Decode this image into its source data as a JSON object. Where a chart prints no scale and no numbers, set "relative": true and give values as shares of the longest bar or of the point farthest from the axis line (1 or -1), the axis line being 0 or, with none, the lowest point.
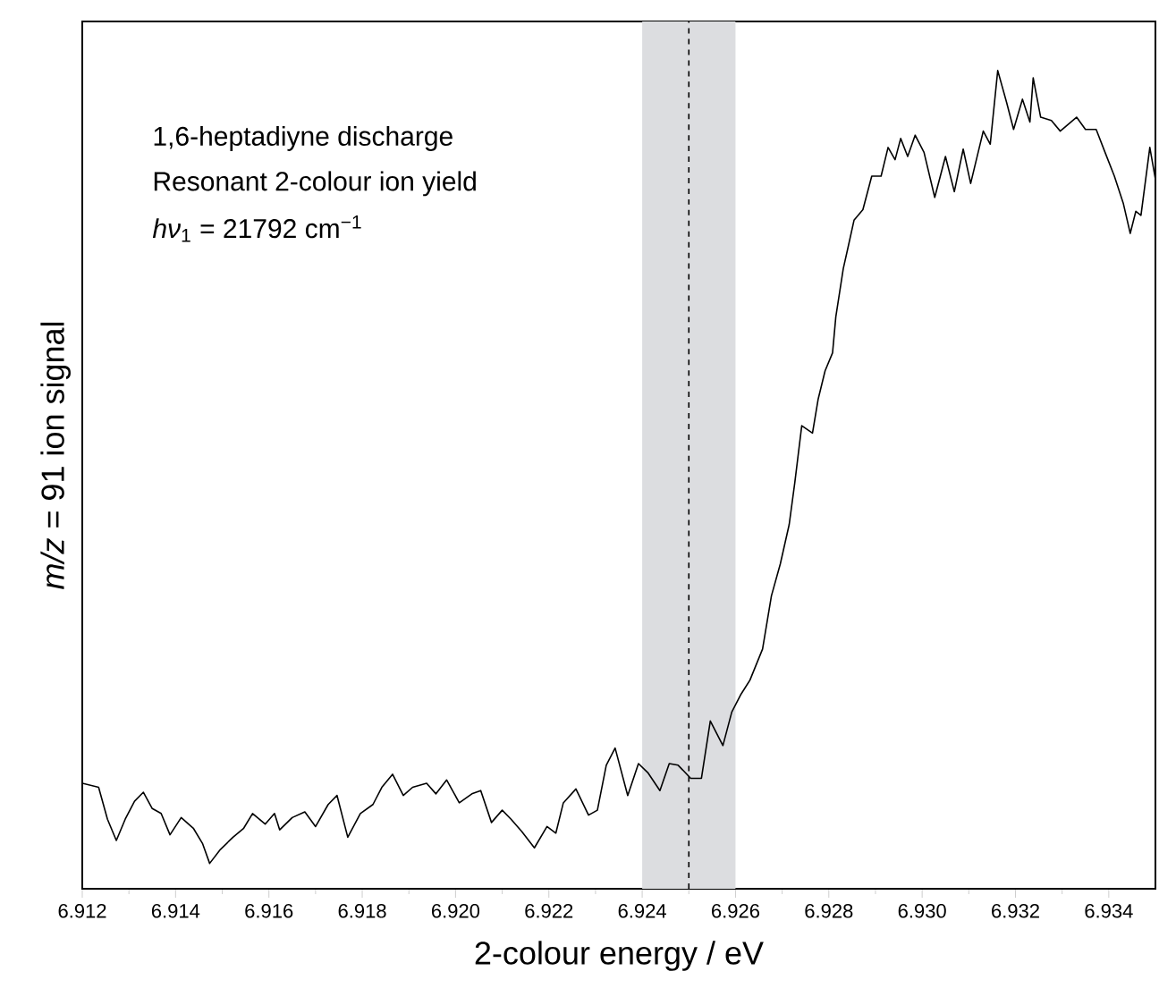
{
  "chart_data": {
    "type": "line",
    "relative": true,
    "xlabel": "2-colour energy / eV",
    "ylabel": "*m/z* = 91 ion signal",
    "annotations": [
      "1,6-heptadiyne discharge",
      "Resonant 2-colour ion yield",
      "*hν*$_{1}$ = 21792 cm$^{−1}$"
    ],
    "xlim": [
      6.912,
      6.935
    ],
    "xticks": [
      6.912,
      6.914,
      6.916,
      6.918,
      {
        "value": 6.92,
        "label": "6.920"
      },
      6.922,
      6.924,
      6.926,
      6.928,
      {
        "value": 6.93,
        "label": "6.930"
      },
      6.932,
      6.934
    ],
    "bands": [
      {
        "axis": "x",
        "from": 6.924,
        "to": 6.926,
        "color": "#dcdde0"
      }
    ],
    "ref_lines": [
      {
        "axis": "x",
        "value": 6.925,
        "line_style": "dashed",
        "color": "#000000"
      }
    ],
    "color": "#000000",
    "x": [
      6.912,
      6.91235,
      6.91254,
      6.91273,
      6.91292,
      6.91312,
      6.91331,
      6.9135,
      6.91369,
      6.91388,
      6.91412,
      6.91438,
      6.91458,
      6.91473,
      6.91496,
      6.91523,
      6.91546,
      6.91565,
      6.91592,
      6.91612,
      6.91623,
      6.9165,
      6.91677,
      6.917,
      6.91727,
      6.91746,
      6.91769,
      6.91796,
      6.91823,
      6.91842,
      6.91865,
      6.91888,
      6.91908,
      6.91938,
      6.91958,
      6.91981,
      6.92008,
      6.92035,
      6.92054,
      6.92077,
      6.921,
      6.92119,
      6.92142,
      6.92169,
      6.92196,
      6.92215,
      6.92231,
      6.92258,
      6.92285,
      6.92304,
      6.92323,
      6.92342,
      6.92369,
      6.92392,
      6.92412,
      6.92438,
      6.92458,
      6.92477,
      6.92504,
      6.92527,
      6.92546,
      6.92573,
      6.92592,
      6.92612,
      6.92631,
      6.92658,
      6.92677,
      6.92696,
      6.92715,
      6.92727,
      6.92742,
      6.92765,
      6.92777,
      6.92792,
      6.92808,
      6.92815,
      6.92831,
      6.92842,
      6.92854,
      6.92873,
      6.92892,
      6.92912,
      6.92927,
      6.92942,
      6.92954,
      6.92969,
      6.92985,
      6.93004,
      6.93027,
      6.9305,
      6.93069,
      6.93088,
      6.93104,
      6.93131,
      6.93146,
      6.93162,
      6.93181,
      6.93196,
      6.93215,
      6.93231,
      6.93238,
      6.93254,
      6.93277,
      6.93296,
      6.93331,
      6.9335,
      6.93373,
      6.93392,
      6.93412,
      6.93431,
      6.93446,
      6.93458,
      6.93469,
      6.93488,
      6.935
    ],
    "values": [
      0.129,
      0.124,
      0.085,
      0.059,
      0.085,
      0.107,
      0.118,
      0.098,
      0.092,
      0.066,
      0.087,
      0.074,
      0.055,
      0.031,
      0.048,
      0.063,
      0.074,
      0.092,
      0.079,
      0.092,
      0.072,
      0.087,
      0.094,
      0.076,
      0.103,
      0.114,
      0.063,
      0.092,
      0.103,
      0.124,
      0.14,
      0.114,
      0.124,
      0.129,
      0.116,
      0.133,
      0.105,
      0.116,
      0.12,
      0.081,
      0.096,
      0.085,
      0.07,
      0.05,
      0.076,
      0.068,
      0.105,
      0.122,
      0.09,
      0.096,
      0.151,
      0.172,
      0.114,
      0.153,
      0.142,
      0.12,
      0.153,
      0.151,
      0.135,
      0.135,
      0.205,
      0.175,
      0.216,
      0.238,
      0.255,
      0.293,
      0.358,
      0.397,
      0.445,
      0.496,
      0.566,
      0.557,
      0.598,
      0.633,
      0.655,
      0.699,
      0.758,
      0.786,
      0.817,
      0.83,
      0.871,
      0.871,
      0.906,
      0.891,
      0.917,
      0.895,
      0.921,
      0.9,
      0.845,
      0.895,
      0.852,
      0.904,
      0.862,
      0.926,
      0.91,
      1.0,
      0.961,
      0.928,
      0.965,
      0.937,
      0.991,
      0.943,
      0.939,
      0.926,
      0.943,
      0.928,
      0.928,
      0.9,
      0.871,
      0.838,
      0.801,
      0.828,
      0.823,
      0.906,
      0.867
    ]
  }
}
